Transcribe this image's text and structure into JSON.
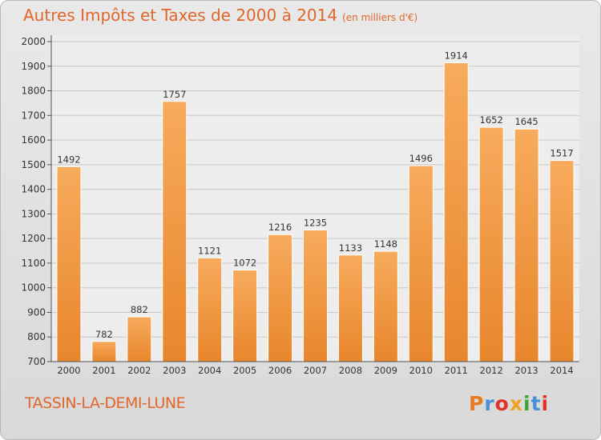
{
  "header": {
    "title": "Autres Impôts et Taxes de 2000 à 2014",
    "subtitle": "(en milliers d'€)"
  },
  "footer": {
    "commune": "TASSIN-LA-DEMI-LUNE",
    "logo_letters": [
      "P",
      "r",
      "o",
      "x",
      "i",
      "t",
      "i"
    ]
  },
  "colors": {
    "bar_light": "#f7ab5c",
    "bar_dark": "#e8862c",
    "accent": "#e0662a"
  },
  "chart_data": {
    "type": "bar",
    "title": "Autres Impôts et Taxes de 2000 à 2014",
    "subtitle": "(en milliers d'€)",
    "categories": [
      "2000",
      "2001",
      "2002",
      "2003",
      "2004",
      "2005",
      "2006",
      "2007",
      "2008",
      "2009",
      "2010",
      "2011",
      "2012",
      "2013",
      "2014"
    ],
    "values": [
      1492,
      782,
      882,
      1757,
      1121,
      1072,
      1216,
      1235,
      1133,
      1148,
      1496,
      1914,
      1652,
      1645,
      1517
    ],
    "ylim": [
      700,
      2000
    ],
    "yticks": [
      700,
      800,
      900,
      1000,
      1100,
      1200,
      1300,
      1400,
      1500,
      1600,
      1700,
      1800,
      1900,
      2000
    ],
    "xlabel": "",
    "ylabel": "",
    "grid": true,
    "data_labels": true
  }
}
